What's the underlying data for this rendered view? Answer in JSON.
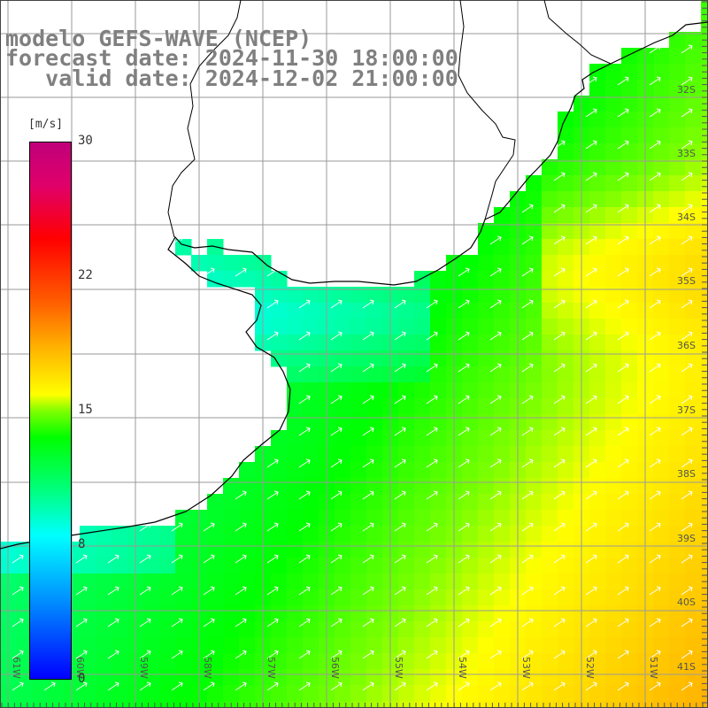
{
  "titles": {
    "model": "modelo GEFS-WAVE (NCEP)",
    "forecast": "forecast date: 2024-11-30 18:00:00",
    "valid": "   valid date: 2024-12-02 21:00:00"
  },
  "colorbar": {
    "unit": "[m/s]",
    "labels": [
      "30",
      "22",
      "15",
      "8",
      "0"
    ],
    "min": 0,
    "max": 30,
    "colors": [
      "#0000ff",
      "#00ffff",
      "#00ff00",
      "#ffff00",
      "#ff8000",
      "#ff0000",
      "#c0007a"
    ]
  },
  "map": {
    "lat_labels": [
      "32S",
      "33S",
      "34S",
      "35S",
      "36S",
      "37S",
      "38S",
      "39S",
      "40S",
      "41S"
    ],
    "lon_labels": [
      "61W",
      "60W",
      "59W",
      "58W",
      "57W",
      "56W",
      "55W",
      "54W",
      "53W",
      "52W",
      "51W"
    ],
    "land_color": "#ffffff",
    "grid_color": "#a0a0a0",
    "arrow_color": "#ffffff",
    "vector_direction": "toward north-east"
  }
}
